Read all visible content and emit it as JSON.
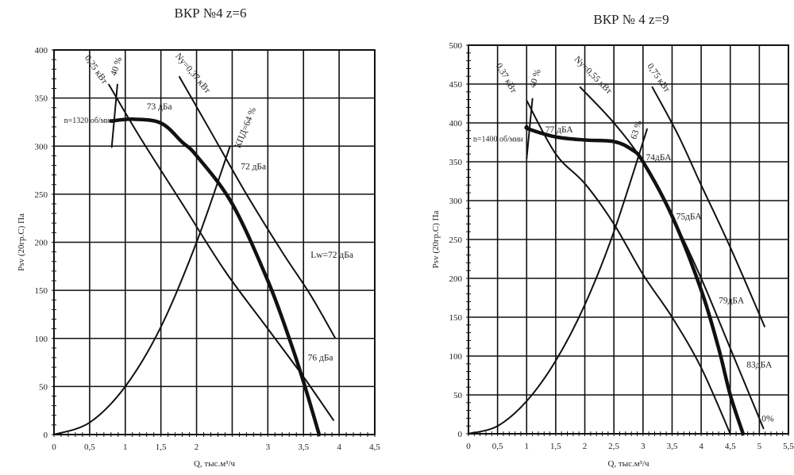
{
  "chart_data": [
    {
      "type": "line",
      "title": "ВКР №4 z=6",
      "xlabel": "Q, тыс.м³/ч",
      "ylabel": "Psv (20гр.С) Па",
      "xlim": [
        0,
        4.5
      ],
      "ylim": [
        0,
        400
      ],
      "grid": true,
      "xticks": [
        0,
        0.5,
        1,
        1.5,
        2,
        3,
        3.5,
        4,
        4.5
      ],
      "xtick_labels": [
        "0",
        "0,5",
        "1",
        "1,5",
        "2",
        "3",
        "3,5",
        "4",
        "4,5"
      ],
      "xgrid_step": 0.5,
      "yticks": [
        0,
        50,
        100,
        150,
        200,
        250,
        300,
        350,
        400
      ],
      "ytick_labels": [
        "0",
        "50",
        "100",
        "150",
        "200",
        "250",
        "300",
        "350",
        "400"
      ],
      "series": [
        {
          "name": "pressure n=1320",
          "bold": true,
          "x": [
            0.8,
            1.1,
            1.5,
            1.8,
            2.0,
            2.5,
            3.0,
            3.3,
            3.5,
            3.72
          ],
          "y": [
            326,
            328,
            324,
            304,
            290,
            240,
            160,
            100,
            55,
            0
          ]
        },
        {
          "name": "0,25 кВт",
          "x": [
            0.77,
            1.2,
            1.8,
            2.4,
            3.0,
            3.5,
            3.92
          ],
          "y": [
            364,
            310,
            240,
            170,
            110,
            60,
            15
          ]
        },
        {
          "name": "Ny=0,37 кВт",
          "x": [
            1.76,
            2.2,
            2.7,
            3.2,
            3.6,
            3.94
          ],
          "y": [
            372,
            315,
            250,
            190,
            145,
            101
          ]
        },
        {
          "name": "40 %",
          "x": [
            0.89,
            0.81
          ],
          "y": [
            364,
            299
          ]
        },
        {
          "name": "КПД=64 %",
          "x": [
            0,
            0.5,
            1.0,
            1.5,
            2.0,
            2.47
          ],
          "y": [
            0,
            12.5,
            50,
            112,
            200,
            300
          ]
        }
      ],
      "annotations": [
        {
          "text": "0,25 кВт",
          "x": 0.56,
          "y": 378
        },
        {
          "text": "40 %",
          "x": 0.91,
          "y": 382
        },
        {
          "text": "Ny=0,37 кВт",
          "x": 1.92,
          "y": 374
        },
        {
          "text": "n=1320 об/мин",
          "x": 0.14,
          "y": 324
        },
        {
          "text": "73 дБа",
          "x": 1.3,
          "y": 338
        },
        {
          "text": "КПД=64 %",
          "x": 2.72,
          "y": 318
        },
        {
          "text": "72 дБа",
          "x": 2.62,
          "y": 276
        },
        {
          "text": "Lw=72 дБа",
          "x": 3.6,
          "y": 184
        },
        {
          "text": "76 дБа",
          "x": 3.56,
          "y": 77
        }
      ]
    },
    {
      "type": "line",
      "title": "ВКР № 4 z=9",
      "xlabel": "Q, тыс.м³/ч",
      "ylabel": "Psv (20гр.С) Па",
      "xlim": [
        0,
        5.5
      ],
      "ylim": [
        0,
        500
      ],
      "grid": true,
      "xticks": [
        0,
        0.5,
        1,
        1.5,
        2,
        2.5,
        3,
        3.5,
        4,
        4.5,
        5,
        5.5
      ],
      "xtick_labels": [
        "0",
        "0,5",
        "1",
        "1,5",
        "2",
        "2,5",
        "3",
        "3,5",
        "4",
        "4,5",
        "5",
        "5,5"
      ],
      "xgrid_step": 0.5,
      "yticks": [
        0,
        50,
        100,
        150,
        200,
        250,
        300,
        350,
        400,
        450,
        500
      ],
      "ytick_labels": [
        "0",
        "50",
        "100",
        "150",
        "200",
        "250",
        "300",
        "350",
        "400",
        "450",
        "500"
      ],
      "series": [
        {
          "name": "pressure n=1400",
          "bold": true,
          "x": [
            1.0,
            1.04,
            1.5,
            2.0,
            2.5,
            2.8,
            3.0,
            3.5,
            4.0,
            4.3,
            4.5,
            4.72
          ],
          "y": [
            395,
            392,
            382,
            378,
            376,
            366,
            350,
            280,
            185,
            110,
            50,
            0
          ]
        },
        {
          "name": "0,37 кВт",
          "x": [
            1.0,
            1.5,
            2.0,
            2.5,
            3.0,
            3.5,
            4.0,
            4.5
          ],
          "y": [
            429,
            360,
            322,
            270,
            205,
            150,
            85,
            0
          ]
        },
        {
          "name": "Ny=0,55 кВт",
          "x": [
            1.92,
            2.5,
            3.0,
            3.5,
            4.0,
            4.5,
            5.07
          ],
          "y": [
            446,
            400,
            350,
            280,
            200,
            110,
            7
          ]
        },
        {
          "name": "0,75 кВт",
          "x": [
            3.16,
            3.6,
            4.0,
            4.5,
            5.09
          ],
          "y": [
            446,
            385,
            320,
            240,
            138
          ]
        },
        {
          "name": "40 %",
          "x": [
            1.1,
            1.0
          ],
          "y": [
            431,
            354
          ]
        },
        {
          "name": "63 %",
          "x": [
            0,
            0.5,
            1.0,
            1.5,
            2.0,
            2.5,
            3.07
          ],
          "y": [
            0,
            10,
            42,
            94,
            166,
            260,
            392
          ]
        }
      ],
      "annotations": [
        {
          "text": "0,37 кВт",
          "x": 0.61,
          "y": 456
        },
        {
          "text": "40 %",
          "x": 1.19,
          "y": 456
        },
        {
          "text": "Ny=0,55 кВт",
          "x": 2.11,
          "y": 459
        },
        {
          "text": "0,75 кВт",
          "x": 3.23,
          "y": 456
        },
        {
          "text": "n=1400 об/мин",
          "x": 0.08,
          "y": 376
        },
        {
          "text": "77 дБА",
          "x": 1.32,
          "y": 388
        },
        {
          "text": "63 %",
          "x": 2.93,
          "y": 390
        },
        {
          "text": "74дБА",
          "x": 3.05,
          "y": 352
        },
        {
          "text": "75дБА",
          "x": 3.57,
          "y": 276
        },
        {
          "text": "79дБА",
          "x": 4.3,
          "y": 168
        },
        {
          "text": "83дБА",
          "x": 4.78,
          "y": 85
        },
        {
          "text": "0%",
          "x": 5.04,
          "y": 16
        }
      ]
    }
  ]
}
